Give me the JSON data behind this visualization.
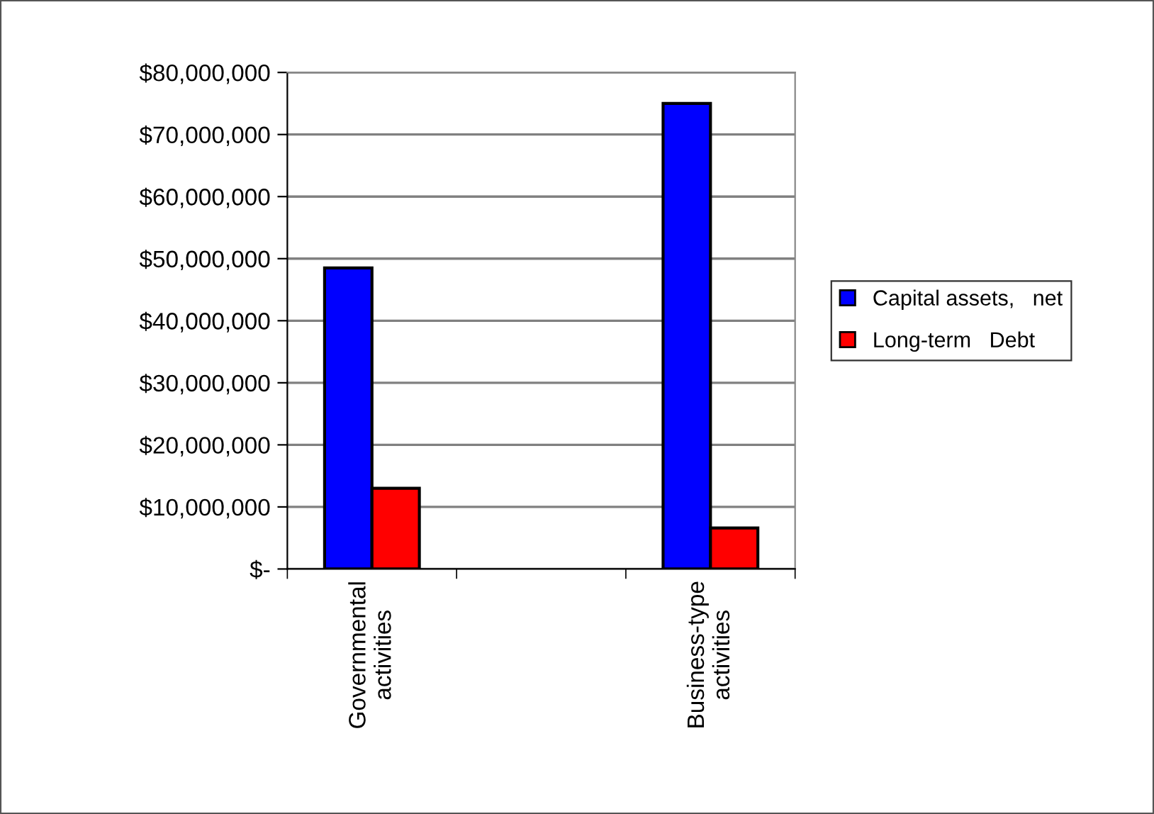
{
  "chart_data": {
    "type": "bar",
    "categories": [
      "Governmental\nactivities",
      null,
      "Business-type\nactivities"
    ],
    "series": [
      {
        "name": "Capital assets,   net",
        "color": "#0000ff",
        "values": [
          48500000,
          null,
          75000000
        ]
      },
      {
        "name": "Long-term   Debt",
        "color": "#ff0000",
        "values": [
          13000000,
          null,
          6600000
        ]
      }
    ],
    "ylim": [
      0,
      80000000
    ],
    "yticks": [
      {
        "value": 0,
        "label": "$-"
      },
      {
        "value": 10000000,
        "label": "$10,000,000"
      },
      {
        "value": 20000000,
        "label": "$20,000,000"
      },
      {
        "value": 30000000,
        "label": "$30,000,000"
      },
      {
        "value": 40000000,
        "label": "$40,000,000"
      },
      {
        "value": 50000000,
        "label": "$50,000,000"
      },
      {
        "value": 60000000,
        "label": "$60,000,000"
      },
      {
        "value": 70000000,
        "label": "$70,000,000"
      },
      {
        "value": 80000000,
        "label": "$80,000,000"
      }
    ],
    "grid": "y",
    "legend": "right"
  }
}
